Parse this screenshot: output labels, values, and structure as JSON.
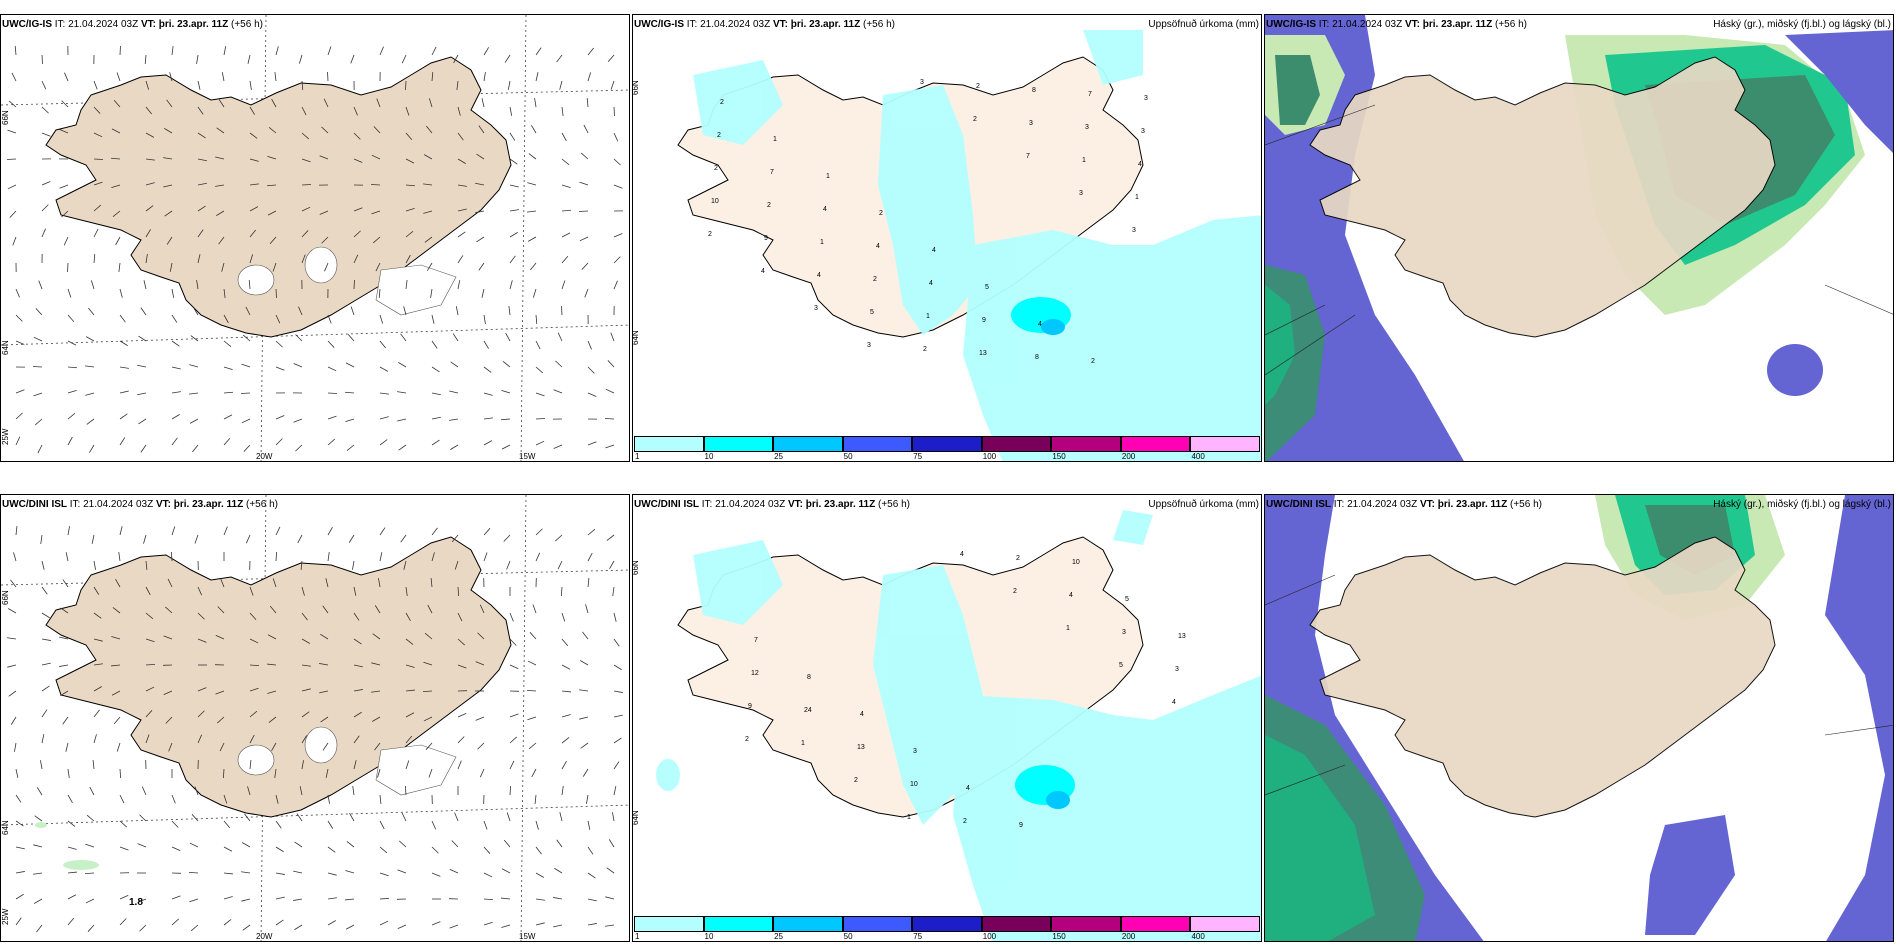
{
  "common": {
    "init_time": "IT: 21.04.2024 03Z",
    "valid_time": "VT: þri. 23.apr. 11Z",
    "lead": "(+56 h)",
    "lon_20": "20W",
    "lon_15": "15W",
    "lat_66": "66N",
    "lat_64": "64N",
    "lon_25": "25W"
  },
  "row1": {
    "model": "UWC/IG-IS"
  },
  "row2": {
    "model": "UWC/DINI ISL"
  },
  "precip_title": "Uppsöfnuð úrkoma (mm)",
  "cloud_title": "Háský (gr.), miðský (fj.bl.) og lágský (bl.)",
  "legend": {
    "colors": [
      "#b3ffff",
      "#00ffff",
      "#00c8ff",
      "#3c5aff",
      "#1e1ec8",
      "#78005a",
      "#b4007f",
      "#ff00b4",
      "#ffb4ff"
    ],
    "ticks": [
      "1",
      "10",
      "25",
      "50",
      "75",
      "100",
      "150",
      "200",
      "400"
    ]
  },
  "precip_values_top": [
    "2",
    "1",
    "1",
    "2",
    "4",
    "5",
    "4",
    "2",
    "3",
    "2",
    "7",
    "4",
    "4",
    "4",
    "9",
    "8",
    "7",
    "3",
    "2",
    "2",
    "1",
    "2",
    "1",
    "13",
    "8",
    "3",
    "4",
    "10",
    "9",
    "4",
    "5",
    "2",
    "2",
    "3",
    "1",
    "1",
    "2",
    "4",
    "3",
    "3",
    "3",
    "2",
    "7",
    "3",
    "3"
  ],
  "precip_values_bottom": [
    "7",
    "8",
    "4",
    "3",
    "4",
    "9",
    "10",
    "5",
    "13",
    "12",
    "24",
    "13",
    "10",
    "2",
    "2",
    "4",
    "3",
    "3",
    "9",
    "1",
    "2",
    "1",
    "4",
    "2",
    "1",
    "5",
    "4",
    "2"
  ],
  "wind_label_dini": "1.8"
}
